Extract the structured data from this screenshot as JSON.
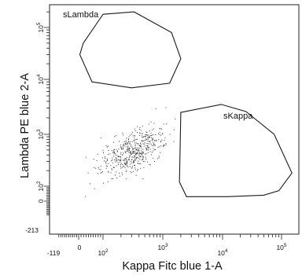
{
  "chart_data": {
    "type": "scatter",
    "title": "",
    "xlabel": "Kappa Fitc blue 1-A",
    "ylabel": "Lambda PE blue 2-A",
    "x_scale": "biexponential",
    "y_scale": "biexponential",
    "xlim": [
      -119,
      200000
    ],
    "ylim": [
      -213,
      200000
    ],
    "grid": false,
    "x_tick_labels": [
      {
        "value": -119,
        "base": "-119",
        "exp": ""
      },
      {
        "value": 0,
        "base": "0",
        "exp": ""
      },
      {
        "value": 100,
        "base": "10",
        "exp": "2"
      },
      {
        "value": 1000,
        "base": "10",
        "exp": "3"
      },
      {
        "value": 10000,
        "base": "10",
        "exp": "4"
      },
      {
        "value": 100000,
        "base": "10",
        "exp": "5"
      }
    ],
    "y_tick_labels": [
      {
        "value": -213,
        "base": "-213",
        "exp": ""
      },
      {
        "value": 0,
        "base": "0",
        "exp": ""
      },
      {
        "value": 100,
        "base": "10",
        "exp": "2"
      },
      {
        "value": 1000,
        "base": "10",
        "exp": "3"
      },
      {
        "value": 10000,
        "base": "10",
        "exp": "4"
      },
      {
        "value": 100000,
        "base": "10",
        "exp": "5"
      }
    ],
    "gates": [
      {
        "name": "sLambda",
        "label": "sLambda",
        "vertices": [
          [
            19,
            50000
          ],
          [
            100,
            180000
          ],
          [
            330,
            200000
          ],
          [
            1400,
            80000
          ],
          [
            2000,
            25000
          ],
          [
            1300,
            8500
          ],
          [
            300,
            7000
          ],
          [
            55,
            9000
          ],
          [
            5,
            30000
          ]
        ]
      },
      {
        "name": "sKappa",
        "label": "sKappa",
        "vertices": [
          [
            2000,
            2500
          ],
          [
            9500,
            3500
          ],
          [
            25000,
            2600
          ],
          [
            75000,
            1000
          ],
          [
            150000,
            180
          ],
          [
            90000,
            70
          ],
          [
            50000,
            40
          ],
          [
            12000,
            30
          ],
          [
            2500,
            30
          ],
          [
            1900,
            120
          ]
        ]
      }
    ],
    "populations": [
      {
        "name": "events",
        "approx_count": 520,
        "center": [
          320,
          560
        ],
        "x_range": [
          -60,
          5000
        ],
        "y_range": [
          -150,
          3000
        ]
      }
    ]
  }
}
